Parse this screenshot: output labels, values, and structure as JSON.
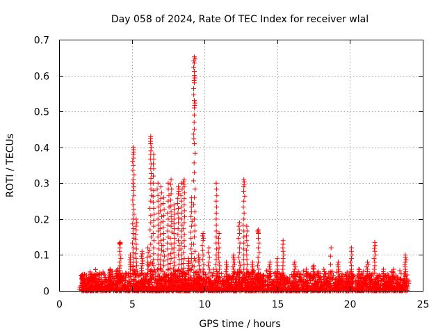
{
  "chart_data": {
    "type": "scatter",
    "title": "Day 058 of 2024, Rate Of TEC Index for receiver wlal",
    "xlabel": "GPS time / hours",
    "ylabel": "ROTI / TECUs",
    "xlim": [
      0,
      25
    ],
    "ylim": [
      0,
      0.7
    ],
    "xticks": [
      0,
      5,
      10,
      15,
      20,
      25
    ],
    "yticks": [
      0,
      0.1,
      0.2,
      0.3,
      0.4,
      0.5,
      0.6,
      0.7
    ],
    "xtick_labels": [
      "0",
      "5",
      "10",
      "15",
      "20",
      "25"
    ],
    "ytick_labels": [
      "0",
      "0.1",
      "0.2",
      "0.3",
      "0.4",
      "0.5",
      "0.6",
      "0.7"
    ],
    "grid": true,
    "marker": "+",
    "color": "#ff0000",
    "background_points": {
      "x_range": [
        1.5,
        24.0
      ],
      "typical_y_range": [
        0.0,
        0.06
      ],
      "description_free": true
    },
    "spikes": [
      {
        "x": 1.6,
        "ys": [
          0.02,
          0.03,
          0.035,
          0.04,
          0.045
        ]
      },
      {
        "x": 2.4,
        "ys": [
          0.03,
          0.04,
          0.045
        ]
      },
      {
        "x": 3.5,
        "ys": [
          0.035,
          0.045,
          0.055,
          0.06
        ]
      },
      {
        "x": 4.0,
        "ys": [
          0.04,
          0.05,
          0.06
        ]
      },
      {
        "x": 4.2,
        "ys": [
          0.05,
          0.07,
          0.1,
          0.13,
          0.135
        ]
      },
      {
        "x": 4.9,
        "ys": [
          0.06,
          0.08,
          0.1
        ]
      },
      {
        "x": 5.1,
        "ys": [
          0.08,
          0.12,
          0.16,
          0.2,
          0.24,
          0.28,
          0.31,
          0.35,
          0.38,
          0.4
        ]
      },
      {
        "x": 5.3,
        "ys": [
          0.06,
          0.09,
          0.13,
          0.17,
          0.2
        ]
      },
      {
        "x": 5.7,
        "ys": [
          0.05,
          0.07,
          0.09,
          0.11
        ]
      },
      {
        "x": 6.1,
        "ys": [
          0.05,
          0.08,
          0.12
        ]
      },
      {
        "x": 6.3,
        "ys": [
          0.08,
          0.13,
          0.19,
          0.25,
          0.3,
          0.34,
          0.38,
          0.41,
          0.43
        ]
      },
      {
        "x": 6.5,
        "ys": [
          0.07,
          0.12,
          0.18,
          0.23,
          0.28,
          0.34,
          0.38
        ]
      },
      {
        "x": 6.8,
        "ys": [
          0.06,
          0.1,
          0.15,
          0.2,
          0.25,
          0.3
        ]
      },
      {
        "x": 7.0,
        "ys": [
          0.06,
          0.1,
          0.14,
          0.19,
          0.24,
          0.29
        ]
      },
      {
        "x": 7.2,
        "ys": [
          0.07,
          0.11,
          0.16,
          0.21,
          0.26
        ]
      },
      {
        "x": 7.5,
        "ys": [
          0.06,
          0.1,
          0.15,
          0.2,
          0.25,
          0.3
        ]
      },
      {
        "x": 7.7,
        "ys": [
          0.05,
          0.09,
          0.13,
          0.18,
          0.22,
          0.27,
          0.31
        ]
      },
      {
        "x": 7.9,
        "ys": [
          0.05,
          0.08,
          0.12,
          0.16,
          0.2,
          0.24
        ]
      },
      {
        "x": 8.2,
        "ys": [
          0.06,
          0.1,
          0.14,
          0.19,
          0.23,
          0.27,
          0.29
        ]
      },
      {
        "x": 8.4,
        "ys": [
          0.06,
          0.1,
          0.15,
          0.2,
          0.25,
          0.3
        ]
      },
      {
        "x": 8.6,
        "ys": [
          0.05,
          0.09,
          0.14,
          0.19,
          0.24,
          0.29,
          0.31
        ]
      },
      {
        "x": 8.9,
        "ys": [
          0.05,
          0.07,
          0.09
        ]
      },
      {
        "x": 9.1,
        "ys": [
          0.06,
          0.09,
          0.13,
          0.18,
          0.22,
          0.26
        ]
      },
      {
        "x": 9.3,
        "ys": [
          0.09,
          0.15,
          0.2,
          0.26,
          0.33,
          0.41,
          0.45,
          0.51,
          0.53,
          0.58,
          0.6,
          0.635,
          0.652
        ]
      },
      {
        "x": 9.6,
        "ys": [
          0.05,
          0.08,
          0.1
        ]
      },
      {
        "x": 9.9,
        "ys": [
          0.06,
          0.1,
          0.14,
          0.16
        ]
      },
      {
        "x": 10.3,
        "ys": [
          0.05,
          0.08,
          0.12
        ]
      },
      {
        "x": 10.8,
        "ys": [
          0.06,
          0.1,
          0.15,
          0.2,
          0.25,
          0.3
        ]
      },
      {
        "x": 11.0,
        "ys": [
          0.05,
          0.08,
          0.12,
          0.16
        ]
      },
      {
        "x": 11.5,
        "ys": [
          0.04,
          0.06,
          0.08
        ]
      },
      {
        "x": 12.0,
        "ys": [
          0.04,
          0.06,
          0.08,
          0.1
        ]
      },
      {
        "x": 12.4,
        "ys": [
          0.05,
          0.08,
          0.12,
          0.16,
          0.19
        ]
      },
      {
        "x": 12.7,
        "ys": [
          0.06,
          0.1,
          0.15,
          0.2,
          0.25,
          0.29,
          0.31
        ]
      },
      {
        "x": 12.9,
        "ys": [
          0.06,
          0.1,
          0.14,
          0.18
        ]
      },
      {
        "x": 13.3,
        "ys": [
          0.04,
          0.06,
          0.08
        ]
      },
      {
        "x": 13.7,
        "ys": [
          0.05,
          0.08,
          0.12,
          0.16,
          0.17
        ]
      },
      {
        "x": 14.5,
        "ys": [
          0.04,
          0.06,
          0.08
        ]
      },
      {
        "x": 15.0,
        "ys": [
          0.04,
          0.06,
          0.09
        ]
      },
      {
        "x": 15.4,
        "ys": [
          0.05,
          0.08,
          0.11,
          0.14
        ]
      },
      {
        "x": 16.2,
        "ys": [
          0.04,
          0.06,
          0.08
        ]
      },
      {
        "x": 17.0,
        "ys": [
          0.04,
          0.06
        ]
      },
      {
        "x": 17.5,
        "ys": [
          0.04,
          0.06,
          0.07
        ]
      },
      {
        "x": 18.2,
        "ys": [
          0.04,
          0.06
        ]
      },
      {
        "x": 18.7,
        "ys": [
          0.05,
          0.12
        ]
      },
      {
        "x": 19.2,
        "ys": [
          0.04,
          0.06,
          0.08
        ]
      },
      {
        "x": 20.1,
        "ys": [
          0.04,
          0.06,
          0.09,
          0.12
        ]
      },
      {
        "x": 20.6,
        "ys": [
          0.04,
          0.06
        ]
      },
      {
        "x": 21.2,
        "ys": [
          0.04,
          0.06,
          0.08
        ]
      },
      {
        "x": 21.7,
        "ys": [
          0.05,
          0.08,
          0.11,
          0.135
        ]
      },
      {
        "x": 22.3,
        "ys": [
          0.04,
          0.06
        ]
      },
      {
        "x": 23.0,
        "ys": [
          0.04,
          0.06
        ]
      },
      {
        "x": 23.8,
        "ys": [
          0.04,
          0.06,
          0.08,
          0.1
        ]
      }
    ]
  }
}
